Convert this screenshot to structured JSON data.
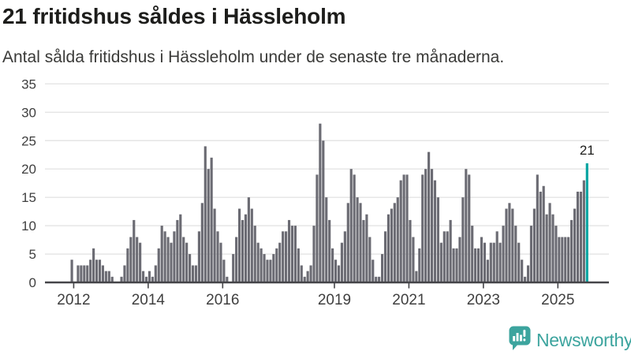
{
  "header": {
    "title": "21 fritidshus såldes i Hässleholm",
    "subtitle": "Antal sålda fritidshus i Hässleholm under de senaste tre månaderna."
  },
  "chart_data": {
    "type": "bar",
    "title": "21 fritidshus såldes i Hässleholm",
    "subtitle": "Antal sålda fritidshus i Hässleholm under de senaste tre månaderna.",
    "start_month": "2011-12",
    "values": [
      4,
      0,
      3,
      3,
      3,
      3,
      4,
      6,
      4,
      4,
      3,
      2,
      2,
      1,
      0,
      0,
      1,
      3,
      6,
      8,
      11,
      8,
      7,
      2,
      1,
      2,
      1,
      3,
      6,
      10,
      9,
      8,
      7,
      9,
      11,
      12,
      8,
      7,
      5,
      3,
      3,
      9,
      14,
      24,
      20,
      22,
      13,
      9,
      7,
      4,
      1,
      0,
      5,
      8,
      13,
      11,
      12,
      15,
      13,
      10,
      7,
      6,
      5,
      4,
      4,
      5,
      6,
      7,
      9,
      9,
      11,
      10,
      10,
      6,
      3,
      1,
      2,
      3,
      10,
      19,
      28,
      25,
      15,
      11,
      6,
      4,
      3,
      7,
      9,
      14,
      20,
      19,
      15,
      14,
      11,
      12,
      8,
      4,
      1,
      1,
      5,
      9,
      12,
      13,
      14,
      15,
      18,
      19,
      19,
      11,
      8,
      2,
      6,
      19,
      20,
      23,
      20,
      18,
      15,
      7,
      9,
      9,
      11,
      6,
      6,
      8,
      15,
      20,
      19,
      10,
      6,
      6,
      8,
      7,
      4,
      7,
      7,
      9,
      7,
      10,
      13,
      14,
      13,
      10,
      7,
      4,
      1,
      3,
      10,
      13,
      19,
      16,
      17,
      12,
      14,
      12,
      10,
      8,
      8,
      8,
      8,
      11,
      13,
      16,
      16,
      18,
      21
    ],
    "highlight_last": true,
    "annotation": "21",
    "x_tick_labels": [
      "2012",
      "2014",
      "2016",
      "2019",
      "2021",
      "2023",
      "2025"
    ],
    "y_ticks": [
      0,
      5,
      10,
      15,
      20,
      25,
      30,
      35
    ],
    "ylim": [
      0,
      35
    ],
    "grid": true,
    "legend": "none",
    "bar_color": "#6b6b73",
    "highlight_color": "#00a3a0"
  },
  "footer": {
    "brand": "Newsworthy",
    "brand_color": "#3ca49e",
    "logo_icon": "newsworthy-speech-bubble-bar-chart-icon"
  }
}
